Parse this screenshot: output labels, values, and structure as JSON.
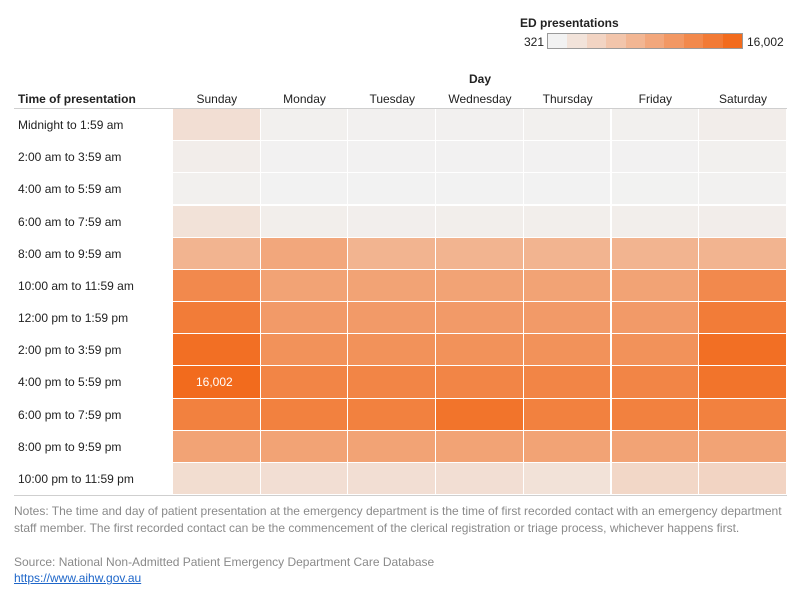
{
  "chart_data": {
    "type": "heatmap",
    "legend": {
      "title": "ED presentations",
      "min_label": "321",
      "max_label": "16,002",
      "min": 321,
      "max": 16002,
      "low_color": "#f2f2f2",
      "high_color": "#f26b1d"
    },
    "column_axis_title": "Day",
    "row_axis_title": "Time of presentation",
    "columns": [
      "Sunday",
      "Monday",
      "Tuesday",
      "Wednesday",
      "Thursday",
      "Friday",
      "Saturday"
    ],
    "rows": [
      "Midnight to 1:59 am",
      "2:00 am to 3:59 am",
      "4:00 am to 5:59 am",
      "6:00 am to 7:59 am",
      "8:00 am to 9:59 am",
      "10:00 am to 11:59 am",
      "12:00 pm to 1:59 pm",
      "2:00 pm to 3:59 pm",
      "4:00 pm to 5:59 pm",
      "6:00 pm to 7:59 pm",
      "8:00 pm to 9:59 pm",
      "10:00 pm to 11:59 pm"
    ],
    "values": [
      [
        2600,
        600,
        550,
        560,
        580,
        600,
        900
      ],
      [
        900,
        400,
        380,
        380,
        390,
        420,
        600
      ],
      [
        600,
        330,
        321,
        330,
        340,
        360,
        450
      ],
      [
        2200,
        800,
        780,
        800,
        800,
        820,
        900
      ],
      [
        7500,
        9000,
        7500,
        7500,
        7500,
        7500,
        7500
      ],
      [
        12500,
        9500,
        9500,
        9500,
        9500,
        9500,
        12500
      ],
      [
        14000,
        10500,
        10500,
        10500,
        10500,
        10500,
        14000
      ],
      [
        15500,
        11500,
        11500,
        11500,
        11500,
        11500,
        15500
      ],
      [
        16002,
        13000,
        13000,
        13000,
        13000,
        13000,
        15000
      ],
      [
        13500,
        13500,
        13500,
        15000,
        13500,
        13500,
        13500
      ],
      [
        9500,
        9500,
        9500,
        9500,
        9500,
        9500,
        9500
      ],
      [
        2800,
        2600,
        2600,
        2600,
        2200,
        3500,
        3800
      ]
    ],
    "annotations": [
      {
        "row": 8,
        "col": 0,
        "text": "16,002"
      }
    ]
  },
  "notes": "Notes: The time and day of patient presentation at the emergency department is the time of first recorded contact with an emergency department staff member. The first recorded contact can be the commencement of the clerical registration or triage process, whichever happens first.",
  "source": "Source: National Non-Admitted Patient Emergency Department Care Database",
  "link": "https://www.aihw.gov.au"
}
